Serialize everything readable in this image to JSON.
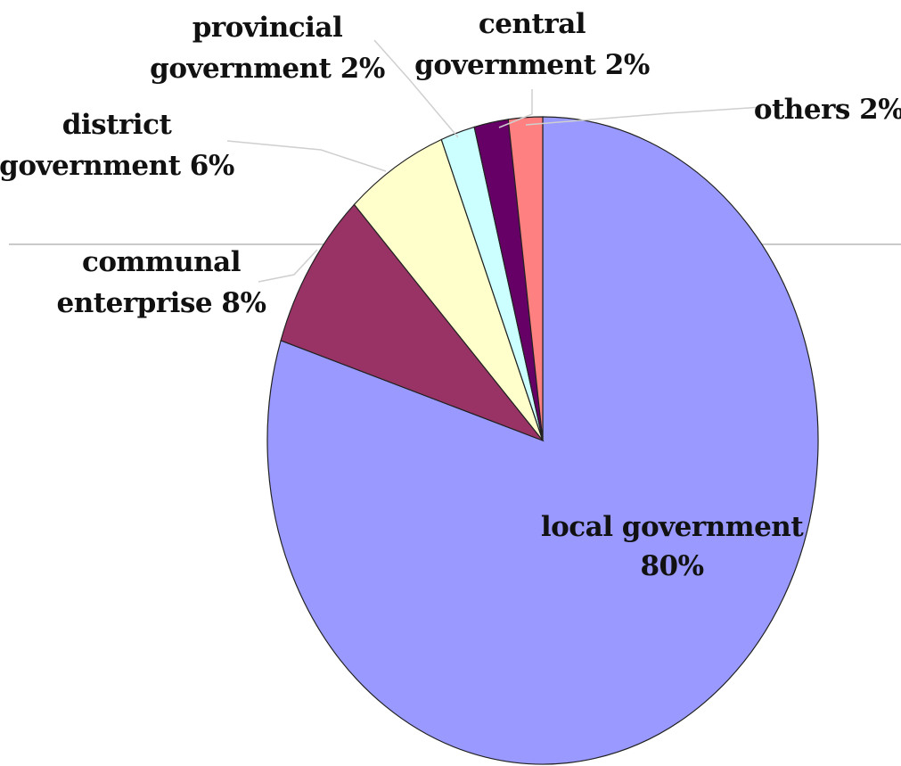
{
  "chart_data": {
    "type": "pie",
    "start_angle_deg": 0,
    "direction": "clockwise",
    "slices": [
      {
        "label": [
          "local government",
          "80%"
        ],
        "value": 80,
        "color": "#9999ff"
      },
      {
        "label": [
          "communal",
          "enterprise 8%"
        ],
        "value": 8,
        "color": "#993366"
      },
      {
        "label": [
          "district",
          "government 6%"
        ],
        "value": 6,
        "color": "#ffffcc"
      },
      {
        "label": [
          "provincial",
          "government 2%"
        ],
        "value": 2,
        "color": "#ccffff"
      },
      {
        "label": [
          "central",
          "government 2%"
        ],
        "value": 2,
        "color": "#660066"
      },
      {
        "label": [
          "others 2%"
        ],
        "value": 2,
        "color": "#ff8080"
      }
    ]
  }
}
